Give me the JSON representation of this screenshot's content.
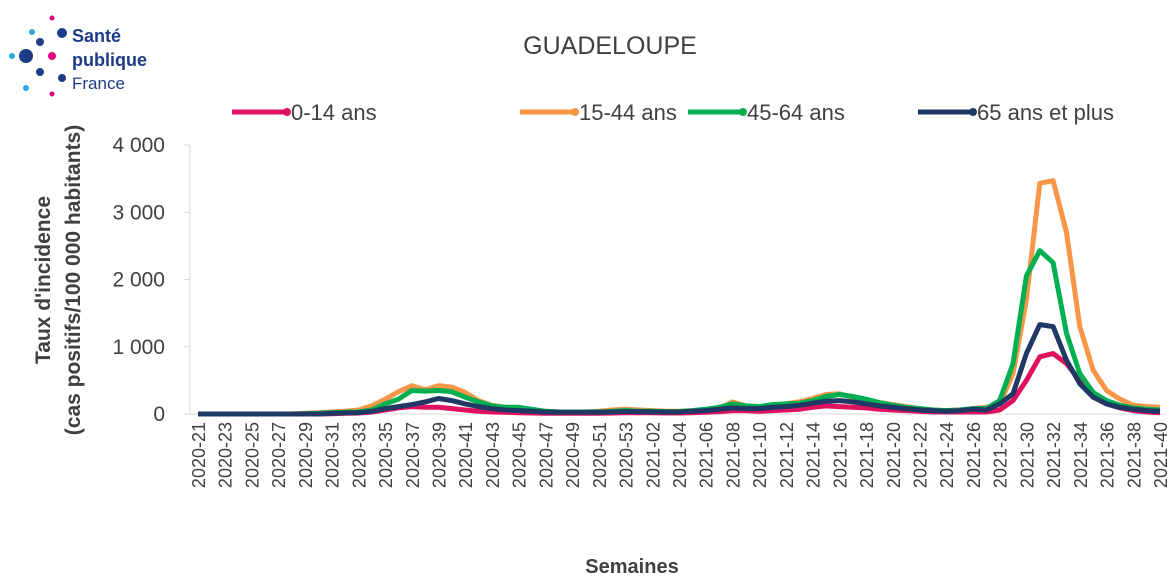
{
  "logo": {
    "line1": "Santé",
    "line2": "publique",
    "line3": "France"
  },
  "chart_data": {
    "type": "line",
    "title": "GUADELOUPE",
    "ylabel": [
      "Taux d'incidence",
      "(cas positifs/100 000 habitants)"
    ],
    "xlabel": "Semaines",
    "categories": [
      "2020-21",
      null,
      "2020-23",
      null,
      "2020-25",
      null,
      "2020-27",
      null,
      "2020-29",
      null,
      "2020-31",
      null,
      "2020-33",
      null,
      "2020-35",
      null,
      "2020-37",
      null,
      "2020-39",
      null,
      "2020-41",
      null,
      "2020-43",
      null,
      "2020-45",
      null,
      "2020-47",
      null,
      "2020-49",
      null,
      "2020-51",
      null,
      "2020-53",
      null,
      "2021-02",
      null,
      "2021-04",
      null,
      "2021-06",
      null,
      "2021-08",
      null,
      "2021-10",
      null,
      "2021-12",
      null,
      "2021-14",
      null,
      "2021-16",
      null,
      "2021-18",
      null,
      "2021-20",
      null,
      "2021-22",
      null,
      "2021-24",
      null,
      "2021-26",
      null,
      "2021-28",
      null,
      "2021-30",
      null,
      "2021-32",
      null,
      "2021-34",
      null,
      "2021-36",
      null,
      "2021-38",
      null,
      "2021-40"
    ],
    "series": [
      {
        "name": "0-14 ans",
        "color": "#e0115f",
        "values": [
          0,
          0,
          0,
          0,
          0,
          0,
          0,
          0,
          0,
          0,
          5,
          10,
          15,
          30,
          60,
          90,
          110,
          100,
          100,
          80,
          60,
          40,
          30,
          25,
          20,
          15,
          10,
          10,
          10,
          10,
          10,
          15,
          20,
          20,
          20,
          15,
          15,
          20,
          25,
          35,
          50,
          50,
          40,
          50,
          60,
          70,
          100,
          120,
          110,
          100,
          90,
          70,
          60,
          50,
          40,
          30,
          30,
          30,
          30,
          30,
          60,
          200,
          500,
          850,
          900,
          750,
          500,
          250,
          150,
          90,
          50,
          30,
          20
        ]
      },
      {
        "name": "15-44 ans",
        "color": "#f79646",
        "values": [
          0,
          0,
          0,
          0,
          0,
          0,
          0,
          0,
          10,
          20,
          30,
          40,
          60,
          120,
          220,
          330,
          420,
          360,
          420,
          400,
          320,
          200,
          130,
          100,
          90,
          60,
          40,
          30,
          30,
          30,
          40,
          60,
          70,
          60,
          50,
          40,
          40,
          50,
          60,
          80,
          180,
          120,
          100,
          130,
          150,
          180,
          230,
          290,
          300,
          250,
          210,
          170,
          140,
          110,
          80,
          60,
          50,
          60,
          80,
          100,
          150,
          600,
          1700,
          3430,
          3470,
          2700,
          1300,
          650,
          350,
          220,
          130,
          110,
          100
        ]
      },
      {
        "name": "45-64 ans",
        "color": "#00b050",
        "values": [
          0,
          0,
          0,
          0,
          0,
          0,
          0,
          0,
          5,
          10,
          20,
          25,
          30,
          60,
          150,
          220,
          350,
          340,
          350,
          330,
          250,
          180,
          120,
          100,
          100,
          70,
          40,
          30,
          30,
          30,
          30,
          40,
          50,
          40,
          40,
          35,
          35,
          50,
          70,
          100,
          150,
          120,
          110,
          140,
          150,
          160,
          200,
          260,
          290,
          260,
          220,
          170,
          130,
          100,
          80,
          60,
          50,
          60,
          80,
          80,
          200,
          750,
          2050,
          2430,
          2250,
          1200,
          600,
          320,
          200,
          130,
          90,
          70,
          60
        ]
      },
      {
        "name": "65 ans et plus",
        "color": "#1f3864",
        "values": [
          0,
          0,
          0,
          0,
          0,
          0,
          0,
          0,
          0,
          0,
          10,
          15,
          20,
          40,
          80,
          110,
          140,
          180,
          230,
          200,
          150,
          110,
          80,
          60,
          50,
          40,
          30,
          25,
          25,
          25,
          25,
          30,
          35,
          35,
          30,
          30,
          30,
          40,
          50,
          70,
          90,
          80,
          80,
          100,
          110,
          130,
          160,
          190,
          200,
          180,
          150,
          120,
          100,
          80,
          60,
          50,
          40,
          50,
          70,
          60,
          150,
          300,
          900,
          1330,
          1300,
          800,
          450,
          250,
          150,
          100,
          70,
          50,
          40
        ]
      }
    ],
    "ylim": [
      0,
      4000
    ],
    "yticks": [
      0,
      {
        "value": 1000,
        "label": "1 000"
      },
      {
        "value": 2000,
        "label": "2 000"
      },
      {
        "value": 3000,
        "label": "3 000"
      },
      {
        "value": 4000,
        "label": "4 000"
      }
    ],
    "legend": "top"
  }
}
